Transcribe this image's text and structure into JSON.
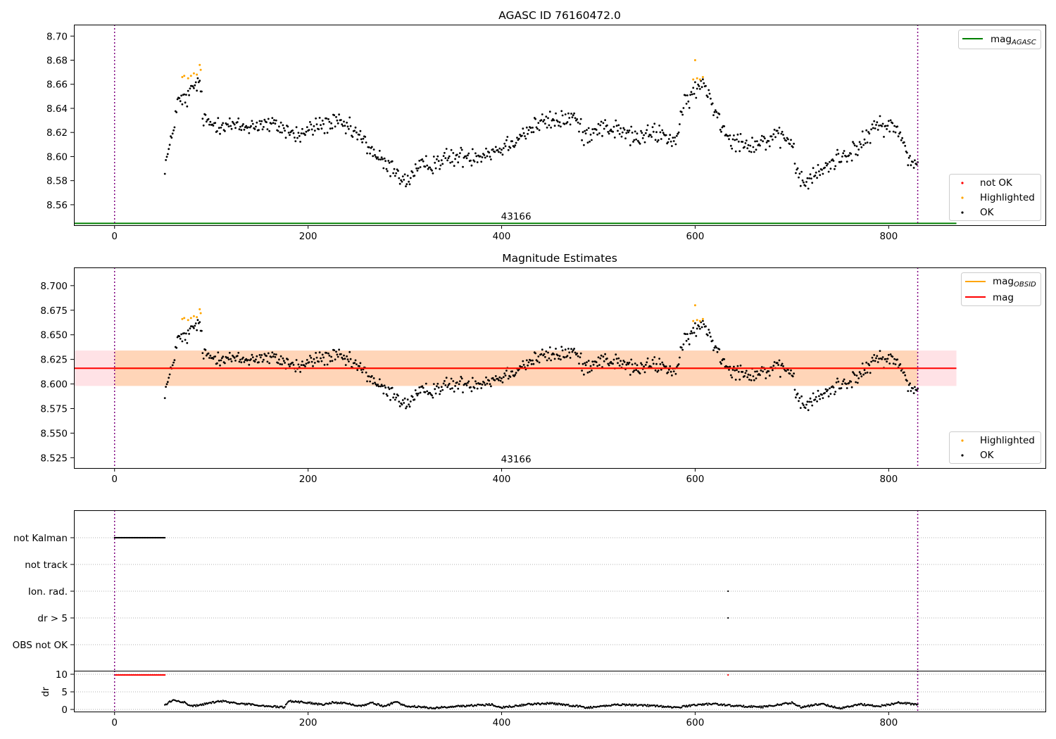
{
  "chart_data": [
    {
      "type": "scatter",
      "title": "AGASC ID 76160472.0",
      "x_range": [
        -42,
        962
      ],
      "y_range": [
        8.543,
        8.7095
      ],
      "x_ticks": [
        0,
        200,
        400,
        600,
        800
      ],
      "y_ticks": [
        8.56,
        8.58,
        8.6,
        8.62,
        8.64,
        8.66,
        8.68,
        8.7
      ],
      "obsid_label": "43166",
      "obsid_label_x": 415,
      "obs_boundaries": [
        0,
        830
      ],
      "mag_agasc": 8.5445,
      "reference_lines": [
        {
          "name": "mag_AGASC",
          "label": "mag",
          "subscript": "AGASC",
          "y": 8.5445,
          "x_range": [
            -42,
            870
          ],
          "color": "#008000"
        }
      ],
      "legends": [
        {
          "position": "top-right",
          "entries": [
            {
              "label": "mag",
              "subscript": "AGASC",
              "kind": "line",
              "color": "#008000"
            }
          ]
        },
        {
          "position": "lower-right",
          "entries": [
            {
              "label": "not OK",
              "kind": "marker",
              "color": "#ff0000"
            },
            {
              "label": "Highlighted",
              "kind": "marker",
              "color": "#ffa500"
            },
            {
              "label": "OK",
              "kind": "marker",
              "color": "#000000"
            }
          ]
        }
      ],
      "series": [
        {
          "name": "OK",
          "color": "#000000",
          "x_range": [
            52,
            830
          ],
          "profile": [
            [
              52,
              8.593
            ],
            [
              58,
              8.61
            ],
            [
              65,
              8.645
            ],
            [
              75,
              8.648
            ],
            [
              82,
              8.658
            ],
            [
              88,
              8.662
            ],
            [
              92,
              8.63
            ],
            [
              100,
              8.627
            ],
            [
              110,
              8.628
            ],
            [
              130,
              8.624
            ],
            [
              150,
              8.627
            ],
            [
              170,
              8.625
            ],
            [
              190,
              8.617
            ],
            [
              210,
              8.626
            ],
            [
              230,
              8.628
            ],
            [
              250,
              8.619
            ],
            [
              265,
              8.606
            ],
            [
              280,
              8.592
            ],
            [
              290,
              8.59
            ],
            [
              300,
              8.578
            ],
            [
              310,
              8.587
            ],
            [
              320,
              8.592
            ],
            [
              340,
              8.598
            ],
            [
              360,
              8.6
            ],
            [
              380,
              8.602
            ],
            [
              400,
              8.607
            ],
            [
              420,
              8.618
            ],
            [
              440,
              8.628
            ],
            [
              460,
              8.63
            ],
            [
              475,
              8.633
            ],
            [
              485,
              8.617
            ],
            [
              500,
              8.625
            ],
            [
              520,
              8.622
            ],
            [
              540,
              8.615
            ],
            [
              560,
              8.62
            ],
            [
              580,
              8.613
            ],
            [
              590,
              8.645
            ],
            [
              600,
              8.655
            ],
            [
              610,
              8.66
            ],
            [
              620,
              8.64
            ],
            [
              630,
              8.622
            ],
            [
              640,
              8.614
            ],
            [
              660,
              8.61
            ],
            [
              680,
              8.615
            ],
            [
              700,
              8.614
            ],
            [
              705,
              8.585
            ],
            [
              715,
              8.578
            ],
            [
              730,
              8.588
            ],
            [
              750,
              8.6
            ],
            [
              770,
              8.608
            ],
            [
              790,
              8.628
            ],
            [
              810,
              8.622
            ],
            [
              820,
              8.6
            ],
            [
              830,
              8.592
            ]
          ],
          "noise": 0.008
        },
        {
          "name": "Highlighted",
          "color": "#ffa500",
          "points": [
            [
              70,
              8.666
            ],
            [
              72,
              8.667
            ],
            [
              76,
              8.665
            ],
            [
              79,
              8.667
            ],
            [
              82,
              8.669
            ],
            [
              85,
              8.668
            ],
            [
              88,
              8.676
            ],
            [
              89,
              8.672
            ],
            [
              598,
              8.664
            ],
            [
              600,
              8.68
            ],
            [
              602,
              8.665
            ],
            [
              605,
              8.664
            ],
            [
              608,
              8.666
            ]
          ]
        }
      ]
    },
    {
      "type": "scatter",
      "title": "Magnitude Estimates",
      "x_range": [
        -42,
        962
      ],
      "y_range": [
        8.5145,
        8.7185
      ],
      "x_ticks": [
        0,
        200,
        400,
        600,
        800
      ],
      "y_ticks": [
        8.525,
        8.55,
        8.575,
        8.6,
        8.625,
        8.65,
        8.675,
        8.7
      ],
      "y_tick_labels": [
        "8.525",
        "8.550",
        "8.575",
        "8.600",
        "8.625",
        "8.650",
        "8.675",
        "8.700"
      ],
      "obsid_label": "43166",
      "obsid_label_x": 415,
      "obs_boundaries": [
        0,
        830
      ],
      "mag": 8.616,
      "mag_obsid": 8.616,
      "bands": [
        {
          "name": "mag range",
          "y_range": [
            8.598,
            8.634
          ],
          "x_range": [
            -42,
            870
          ],
          "color": "#ffb6c1",
          "opacity": 0.4
        },
        {
          "name": "mag_OBSID range",
          "y_range": [
            8.598,
            8.634
          ],
          "x_range": [
            0,
            830
          ],
          "color": "#ffa500",
          "opacity": 0.2
        }
      ],
      "reference_lines": [
        {
          "name": "mag_OBSID",
          "label": "mag",
          "subscript": "OBSID",
          "y": 8.616,
          "x_range": [
            0,
            830
          ],
          "color": "#ffa500"
        },
        {
          "name": "mag",
          "label": "mag",
          "y": 8.616,
          "x_range": [
            -42,
            870
          ],
          "color": "#ff0000"
        }
      ],
      "legends": [
        {
          "position": "top-right",
          "entries": [
            {
              "label": "mag",
              "subscript": "OBSID",
              "kind": "line",
              "color": "#ffa500"
            },
            {
              "label": "mag",
              "kind": "line",
              "color": "#ff0000"
            }
          ]
        },
        {
          "position": "lower-right",
          "entries": [
            {
              "label": "Highlighted",
              "kind": "marker",
              "color": "#ffa500"
            },
            {
              "label": "OK",
              "kind": "marker",
              "color": "#000000"
            }
          ]
        }
      ],
      "series": [
        {
          "name": "OK",
          "color": "#000000",
          "same_as": "panel 1 OK"
        },
        {
          "name": "Highlighted",
          "color": "#ffa500",
          "same_as": "panel 1 Highlighted"
        }
      ]
    },
    {
      "type": "scatter",
      "title": "",
      "x_range": [
        -42,
        962
      ],
      "x_ticks": [
        0,
        200,
        400,
        600,
        800
      ],
      "categories": [
        "not Kalman",
        "not track",
        "Ion. rad.",
        "dr > 5",
        "OBS not OK"
      ],
      "obs_boundaries": [
        0,
        830
      ],
      "flag_series": [
        {
          "name": "not Kalman",
          "x_range": [
            0,
            52
          ],
          "color": "#000000"
        },
        {
          "name": "Ion. rad.",
          "x": [
            634
          ],
          "color": "#000000"
        },
        {
          "name": "dr > 5",
          "x": [
            634
          ],
          "color": "#000000"
        }
      ]
    },
    {
      "type": "scatter",
      "ylabel": "dr",
      "x_range": [
        -42,
        962
      ],
      "y_range": [
        -0.6,
        11
      ],
      "x_ticks": [
        0,
        200,
        400,
        600,
        800
      ],
      "y_ticks": [
        0,
        5,
        10
      ],
      "obs_boundaries": [
        0,
        830
      ],
      "clip_value": 10,
      "series": [
        {
          "name": "dr clipped",
          "color": "#ff0000",
          "x_range": [
            0,
            52
          ],
          "y": 9.8,
          "extra_x": [
            634
          ]
        },
        {
          "name": "dr",
          "color": "#000000",
          "x_range": [
            52,
            830
          ],
          "profile": [
            [
              52,
              1.3
            ],
            [
              60,
              2.6
            ],
            [
              72,
              2.0
            ],
            [
              80,
              0.9
            ],
            [
              95,
              1.6
            ],
            [
              110,
              2.4
            ],
            [
              130,
              1.6
            ],
            [
              145,
              1.3
            ],
            [
              160,
              0.9
            ],
            [
              175,
              0.6
            ],
            [
              180,
              2.4
            ],
            [
              200,
              1.9
            ],
            [
              215,
              1.4
            ],
            [
              225,
              2.0
            ],
            [
              240,
              1.7
            ],
            [
              255,
              1.0
            ],
            [
              265,
              1.9
            ],
            [
              280,
              0.8
            ],
            [
              290,
              2.3
            ],
            [
              300,
              1.0
            ],
            [
              330,
              0.4
            ],
            [
              360,
              1.0
            ],
            [
              390,
              1.4
            ],
            [
              400,
              0.6
            ],
            [
              430,
              1.5
            ],
            [
              450,
              1.7
            ],
            [
              470,
              1.2
            ],
            [
              490,
              0.5
            ],
            [
              520,
              1.4
            ],
            [
              545,
              1.2
            ],
            [
              560,
              1.0
            ],
            [
              580,
              0.5
            ],
            [
              600,
              1.3
            ],
            [
              620,
              1.6
            ],
            [
              640,
              1.0
            ],
            [
              670,
              0.7
            ],
            [
              700,
              1.9
            ],
            [
              710,
              0.6
            ],
            [
              730,
              1.6
            ],
            [
              750,
              0.3
            ],
            [
              770,
              1.5
            ],
            [
              790,
              0.9
            ],
            [
              810,
              1.9
            ],
            [
              830,
              1.4
            ]
          ],
          "noise": 0.5
        }
      ]
    }
  ]
}
